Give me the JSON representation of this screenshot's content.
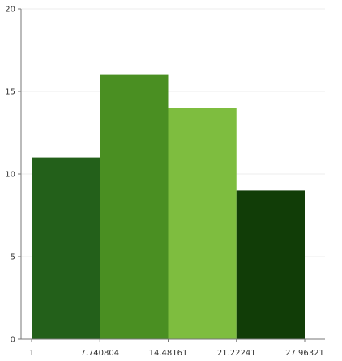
{
  "chart_data": {
    "type": "bar",
    "subtype": "histogram",
    "bins": [
      {
        "from": 1,
        "to": 7.740804,
        "value": 11,
        "color": "#23601a"
      },
      {
        "from": 7.740804,
        "to": 14.48161,
        "value": 16,
        "color": "#4a8f22"
      },
      {
        "from": 14.48161,
        "to": 21.22241,
        "value": 14,
        "color": "#7ebd3f"
      },
      {
        "from": 21.22241,
        "to": 27.96321,
        "value": 9,
        "color": "#113d07"
      }
    ],
    "x_ticks": [
      "1",
      "7.740804",
      "14.48161",
      "21.22241",
      "27.96321"
    ],
    "y_ticks": [
      "0",
      "5",
      "10",
      "15",
      "20"
    ],
    "xlim": [
      1,
      27.96321
    ],
    "ylim": [
      0,
      20
    ],
    "grid": true,
    "title": "",
    "xlabel": "",
    "ylabel": ""
  }
}
